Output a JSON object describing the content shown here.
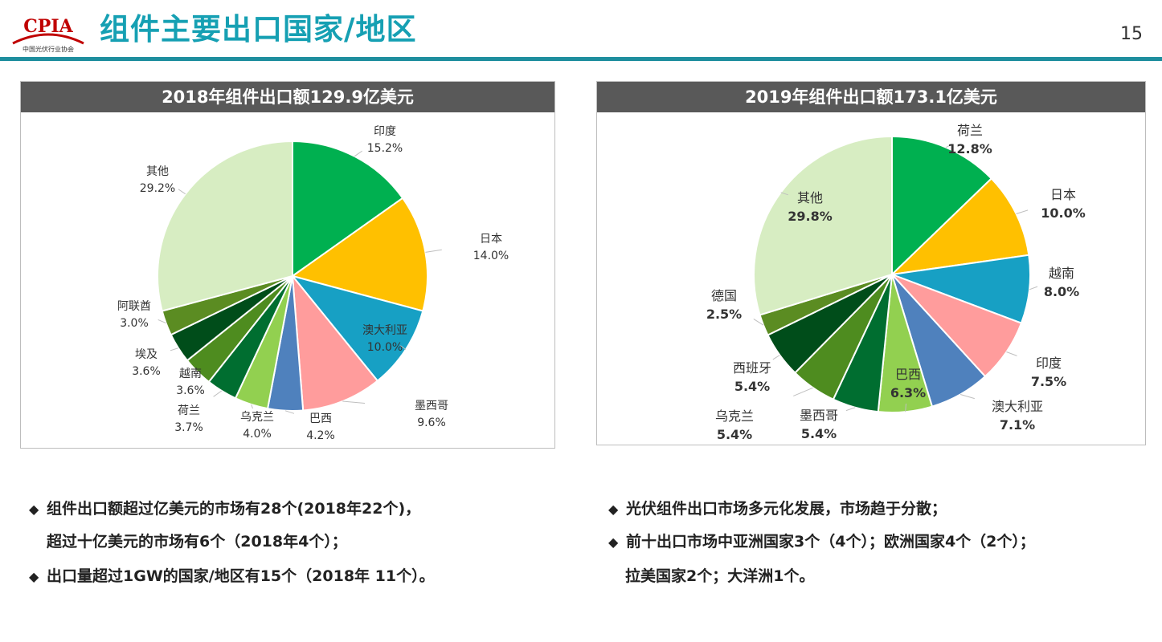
{
  "header": {
    "logo_text": "CPIA",
    "logo_subtext": "中国光伏行业协会",
    "title": "组件主要出口国家/地区",
    "page_number": "15"
  },
  "colors": {
    "accent": "#16a0b3",
    "rule": "#1e8e9e",
    "heading_bg": "#595959"
  },
  "chart_data": [
    {
      "type": "pie",
      "title": "2018年组件出口额129.9亿美元",
      "slices": [
        {
          "name": "印度",
          "value": 15.2,
          "label": "15.2%",
          "color": "#00b050"
        },
        {
          "name": "日本",
          "value": 14.0,
          "label": "14.0%",
          "color": "#ffc000"
        },
        {
          "name": "澳大利亚",
          "value": 10.0,
          "label": "10.0%",
          "color": "#17a0c4"
        },
        {
          "name": "墨西哥",
          "value": 9.6,
          "label": "9.6%",
          "color": "#ff9c9c"
        },
        {
          "name": "巴西",
          "value": 4.2,
          "label": "4.2%",
          "color": "#4f81bd"
        },
        {
          "name": "乌克兰",
          "value": 4.0,
          "label": "4.0%",
          "color": "#92d050"
        },
        {
          "name": "荷兰",
          "value": 3.7,
          "label": "3.7%",
          "color": "#006e30"
        },
        {
          "name": "越南",
          "value": 3.6,
          "label": "3.6%",
          "color": "#4e8c1f"
        },
        {
          "name": "埃及",
          "value": 3.6,
          "label": "3.6%",
          "color": "#004d1a"
        },
        {
          "name": "阿联酋",
          "value": 3.0,
          "label": "3.0%",
          "color": "#5b8c22"
        },
        {
          "name": "其他",
          "value": 29.2,
          "label": "29.2%",
          "color": "#d7edc2"
        }
      ]
    },
    {
      "type": "pie",
      "title": "2019年组件出口额173.1亿美元",
      "slices": [
        {
          "name": "荷兰",
          "value": 12.8,
          "label": "12.8%",
          "color": "#00b050"
        },
        {
          "name": "日本",
          "value": 10.0,
          "label": "10.0%",
          "color": "#ffc000"
        },
        {
          "name": "越南",
          "value": 8.0,
          "label": "8.0%",
          "color": "#17a0c4"
        },
        {
          "name": "印度",
          "value": 7.5,
          "label": "7.5%",
          "color": "#ff9c9c"
        },
        {
          "name": "澳大利亚",
          "value": 7.1,
          "label": "7.1%",
          "color": "#4f81bd"
        },
        {
          "name": "巴西",
          "value": 6.3,
          "label": "6.3%",
          "color": "#92d050"
        },
        {
          "name": "墨西哥",
          "value": 5.4,
          "label": "5.4%",
          "color": "#006e30"
        },
        {
          "name": "乌克兰",
          "value": 5.4,
          "label": "5.4%",
          "color": "#4e8c1f"
        },
        {
          "name": "西班牙",
          "value": 5.4,
          "label": "5.4%",
          "color": "#004d1a"
        },
        {
          "name": "德国",
          "value": 2.5,
          "label": "2.5%",
          "color": "#5b8c22"
        },
        {
          "name": "其他",
          "value": 29.8,
          "label": "29.8%",
          "color": "#d7edc2"
        }
      ]
    }
  ],
  "bullets_left": [
    "组件出口额超过亿美元的市场有28个(2018年22个)，",
    "超过十亿美元的市场有6个（2018年4个）；",
    "出口量超过1GW的国家/地区有15个（2018年 11个）。"
  ],
  "bullets_right": [
    "光伏组件出口市场多元化发展，市场趋于分散；",
    "前十出口市场中亚洲国家3个（4个）；欧洲国家4个（2个）；",
    "拉美国家2个；大洋洲1个。"
  ],
  "bullet_symbol": "◆"
}
